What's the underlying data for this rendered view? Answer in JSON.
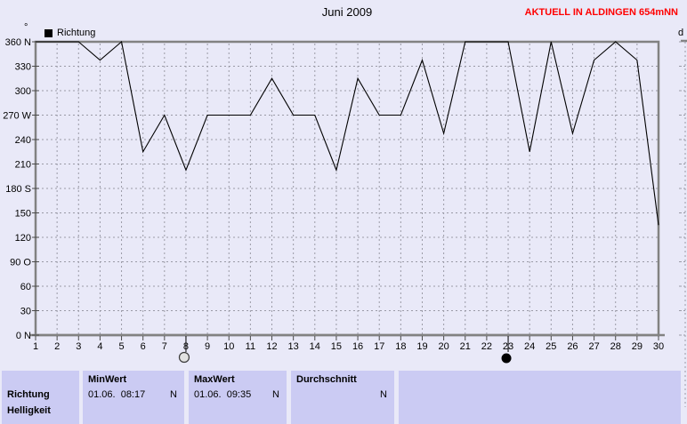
{
  "title": "Juni 2009",
  "header_right": "AKTUELL IN ALDINGEN 654mNN",
  "axis_unit": "°",
  "legend": {
    "label": "Richtung"
  },
  "next_panel_label": "d",
  "chart_data": {
    "type": "line",
    "title": "Juni 2009",
    "series_name": "Richtung",
    "x": [
      1,
      2,
      3,
      4,
      5,
      6,
      7,
      8,
      9,
      10,
      11,
      12,
      13,
      14,
      15,
      16,
      17,
      18,
      19,
      20,
      21,
      22,
      23,
      24,
      25,
      26,
      27,
      28,
      29,
      30
    ],
    "values": [
      360,
      360,
      360,
      337.5,
      360,
      225,
      270,
      202.5,
      270,
      270,
      270,
      315,
      270,
      270,
      202.5,
      315,
      270,
      270,
      337.5,
      247.5,
      360,
      360,
      360,
      225,
      360,
      247.5,
      337.5,
      360,
      337.5,
      135
    ],
    "xlabel": "",
    "ylabel": "°",
    "ylim": [
      0,
      360
    ],
    "ytick_values": [
      360,
      330,
      300,
      270,
      240,
      210,
      180,
      150,
      120,
      90,
      60,
      30,
      0
    ],
    "ytick_labels": [
      "360 N",
      "330",
      "300",
      "270 W",
      "240",
      "210",
      "180 S",
      "150",
      "120",
      "90 O",
      "60",
      "30",
      "0 N"
    ],
    "grid": "dashed",
    "legend_position": "top-left",
    "line_color": "#000000",
    "moon_markers": [
      {
        "day": 8,
        "phase": "full-moon"
      },
      {
        "day": 23,
        "phase": "new-moon"
      }
    ]
  },
  "table": {
    "row_label": "Richtung",
    "next_row_label": "Helligkeit",
    "columns": [
      {
        "header": "MinWert",
        "value": "01.06.  08:17",
        "unit": "N"
      },
      {
        "header": "MaxWert",
        "value": "01.06.  09:35",
        "unit": "N"
      },
      {
        "header": "Durchschnitt",
        "value": "",
        "unit": "N"
      }
    ]
  },
  "colors": {
    "page_bg": "#e9e9f8",
    "cell_bg": "#cbcbf3",
    "border": "#828282",
    "grid": "#9a9aa6",
    "line": "#000000",
    "accent_red": "#ff0000"
  }
}
